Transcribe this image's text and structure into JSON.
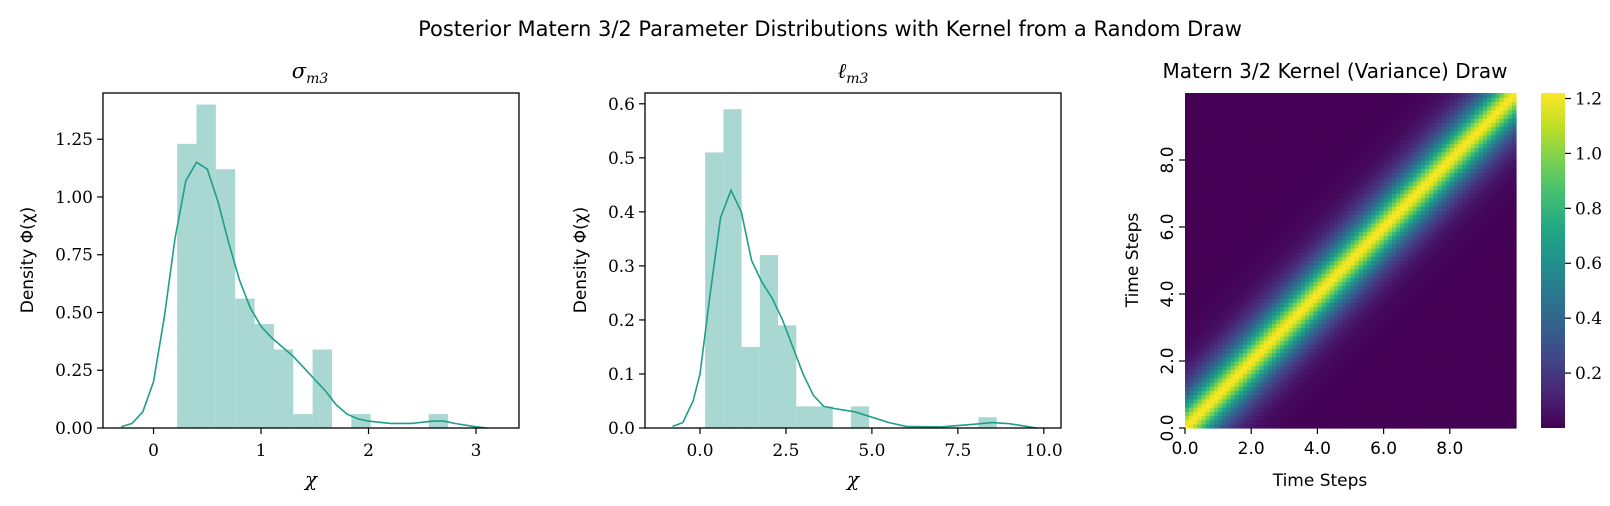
{
  "figure": {
    "suptitle": "Posterior Matern 3/2 Parameter Distributions with Kernel from a Random Draw"
  },
  "chart_data": [
    {
      "type": "bar",
      "title_base": "σ",
      "title_sub": "m3",
      "xlabel": "χ",
      "ylabel": "Density Φ(χ)",
      "xlim": [
        -0.47,
        3.4
      ],
      "ylim": [
        0,
        1.45
      ],
      "xticks": [
        0,
        1,
        2,
        3
      ],
      "xtick_labels": [
        "0",
        "1",
        "2",
        "3"
      ],
      "yticks": [
        0,
        0.25,
        0.5,
        0.75,
        1.0,
        1.25
      ],
      "ytick_labels": [
        "0.00",
        "0.25",
        "0.50",
        "0.75",
        "1.00",
        "1.25"
      ],
      "bar_color": "#a8d8d1",
      "line_color": "#1f9e89",
      "bins": [
        {
          "x0": 0.22,
          "x1": 0.4,
          "value": 1.23
        },
        {
          "x0": 0.4,
          "x1": 0.58,
          "value": 1.4
        },
        {
          "x0": 0.58,
          "x1": 0.76,
          "value": 1.12
        },
        {
          "x0": 0.76,
          "x1": 0.94,
          "value": 0.56
        },
        {
          "x0": 0.94,
          "x1": 1.12,
          "value": 0.45
        },
        {
          "x0": 1.12,
          "x1": 1.3,
          "value": 0.34
        },
        {
          "x0": 1.3,
          "x1": 1.48,
          "value": 0.06
        },
        {
          "x0": 1.48,
          "x1": 1.66,
          "value": 0.34
        },
        {
          "x0": 1.84,
          "x1": 2.02,
          "value": 0.06
        },
        {
          "x0": 2.56,
          "x1": 2.74,
          "value": 0.06
        }
      ],
      "kde": {
        "x": [
          -0.3,
          -0.2,
          -0.1,
          0.0,
          0.1,
          0.2,
          0.3,
          0.4,
          0.5,
          0.6,
          0.7,
          0.8,
          0.9,
          1.0,
          1.1,
          1.2,
          1.3,
          1.4,
          1.5,
          1.6,
          1.7,
          1.8,
          1.9,
          2.0,
          2.2,
          2.4,
          2.6,
          2.7,
          2.8,
          3.0,
          3.1
        ],
        "y": [
          0.005,
          0.02,
          0.07,
          0.2,
          0.48,
          0.82,
          1.07,
          1.15,
          1.12,
          0.98,
          0.8,
          0.64,
          0.52,
          0.44,
          0.39,
          0.35,
          0.31,
          0.26,
          0.21,
          0.16,
          0.1,
          0.06,
          0.04,
          0.03,
          0.02,
          0.02,
          0.03,
          0.03,
          0.02,
          0.005,
          0.0
        ]
      }
    },
    {
      "type": "bar",
      "title_base": "ℓ",
      "title_sub": "m3",
      "xlabel": "χ",
      "ylabel": "Density Φ(χ)",
      "xlim": [
        -1.6,
        10.5
      ],
      "ylim": [
        0,
        0.62
      ],
      "xticks": [
        0,
        2.5,
        5,
        7.5,
        10
      ],
      "xtick_labels": [
        "0.0",
        "2.5",
        "5.0",
        "7.5",
        "10.0"
      ],
      "yticks": [
        0,
        0.1,
        0.2,
        0.3,
        0.4,
        0.5,
        0.6
      ],
      "ytick_labels": [
        "0.0",
        "0.1",
        "0.2",
        "0.3",
        "0.4",
        "0.5",
        "0.6"
      ],
      "bar_color": "#a8d8d1",
      "line_color": "#1f9e89",
      "bins": [
        {
          "x0": 0.15,
          "x1": 0.68,
          "value": 0.51
        },
        {
          "x0": 0.68,
          "x1": 1.21,
          "value": 0.59
        },
        {
          "x0": 1.21,
          "x1": 1.74,
          "value": 0.15
        },
        {
          "x0": 1.74,
          "x1": 2.27,
          "value": 0.32
        },
        {
          "x0": 2.27,
          "x1": 2.8,
          "value": 0.19
        },
        {
          "x0": 2.8,
          "x1": 3.33,
          "value": 0.04
        },
        {
          "x0": 3.33,
          "x1": 3.86,
          "value": 0.04
        },
        {
          "x0": 4.39,
          "x1": 4.92,
          "value": 0.04
        },
        {
          "x0": 8.1,
          "x1": 8.63,
          "value": 0.02
        }
      ],
      "kde": {
        "x": [
          -0.8,
          -0.5,
          -0.2,
          0.0,
          0.3,
          0.6,
          0.9,
          1.2,
          1.5,
          1.8,
          2.1,
          2.4,
          2.7,
          3.0,
          3.3,
          3.6,
          4.0,
          4.5,
          5.0,
          5.5,
          6.0,
          7.0,
          8.0,
          8.5,
          9.0,
          9.5,
          9.8
        ],
        "y": [
          0.003,
          0.01,
          0.05,
          0.1,
          0.25,
          0.39,
          0.44,
          0.4,
          0.31,
          0.27,
          0.24,
          0.2,
          0.15,
          0.1,
          0.06,
          0.04,
          0.035,
          0.03,
          0.02,
          0.01,
          0.003,
          0.002,
          0.007,
          0.01,
          0.008,
          0.003,
          0.0
        ]
      }
    },
    {
      "type": "heatmap",
      "title": "Matern 3/2 Kernel (Variance) Draw",
      "xlabel": "Time Steps",
      "ylabel": "Time Steps",
      "xlim": [
        0,
        10
      ],
      "ylim": [
        0,
        10
      ],
      "xticks": [
        0,
        2,
        4,
        6,
        8
      ],
      "xtick_labels": [
        "0.0",
        "2.0",
        "4.0",
        "6.0",
        "8.0"
      ],
      "yticks": [
        0,
        2,
        4,
        6,
        8
      ],
      "ytick_labels": [
        "0.0",
        "2.0",
        "4.0",
        "6.0",
        "8.0"
      ],
      "kernel": "matern32",
      "variance": 1.22,
      "lengthscale": 0.75,
      "colormap": "viridis",
      "colorbar_ticks": [
        0.2,
        0.4,
        0.6,
        0.8,
        1.0,
        1.2
      ],
      "colorbar_tick_labels": [
        "0.2",
        "0.4",
        "0.6",
        "0.8",
        "1.0",
        "1.2"
      ],
      "colorbar_range": [
        0.0,
        1.22
      ]
    }
  ]
}
